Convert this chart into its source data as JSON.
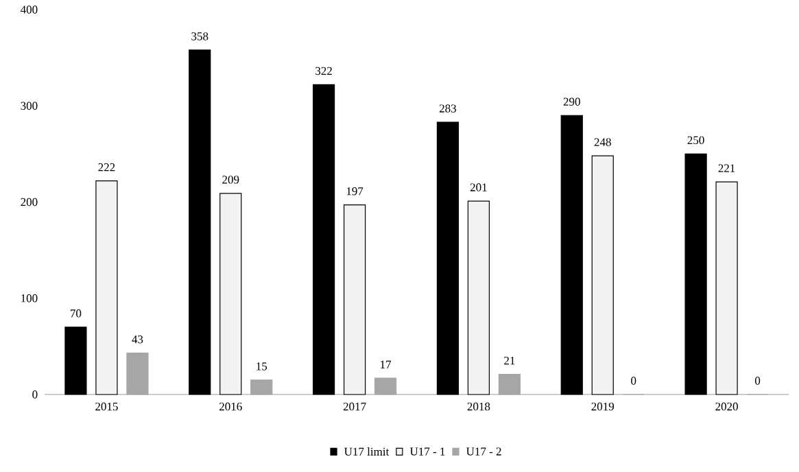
{
  "chart_data": {
    "type": "bar",
    "categories": [
      "2015",
      "2016",
      "2017",
      "2018",
      "2019",
      "2020"
    ],
    "series": [
      {
        "name": "U17 limit",
        "color": "#000000",
        "values": [
          70,
          358,
          322,
          283,
          290,
          250
        ]
      },
      {
        "name": "U17 - 1",
        "color": "#f2f2f2",
        "values": [
          222,
          209,
          197,
          201,
          248,
          221
        ]
      },
      {
        "name": "U17 - 2",
        "color": "#a6a6a6",
        "values": [
          43,
          15,
          17,
          21,
          0,
          0
        ]
      }
    ],
    "ylim": [
      0,
      400
    ],
    "yticks": [
      0,
      100,
      200,
      300,
      400
    ],
    "grid": false,
    "legend": "bottom",
    "data_labels": true
  }
}
